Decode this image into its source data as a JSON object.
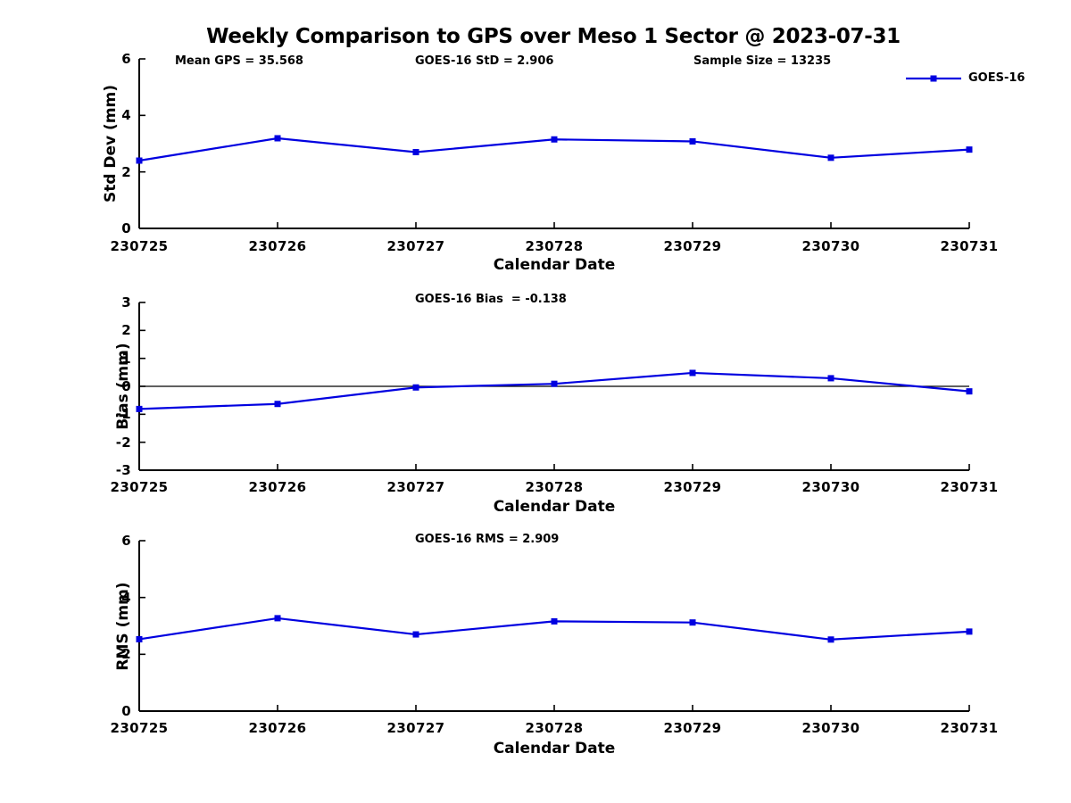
{
  "figure": {
    "title": "Weekly Comparison to GPS over Meso 1 Sector @ 2023-07-31"
  },
  "legend": {
    "label": "GOES-16",
    "position": "top-right"
  },
  "colors": {
    "series": "#0000e0",
    "axis": "#000000",
    "background": "#ffffff",
    "text": "#000000"
  },
  "chart_data": [
    {
      "id": "stddev",
      "type": "line",
      "xlabel": "Calendar Date",
      "ylabel": "Std Dev (mm)",
      "categories": [
        "230725",
        "230726",
        "230727",
        "230728",
        "230729",
        "230730",
        "230731"
      ],
      "series": [
        {
          "name": "GOES-16",
          "marker": "square",
          "values": [
            2.4,
            3.19,
            2.7,
            3.15,
            3.08,
            2.5,
            2.79
          ]
        }
      ],
      "ylim": [
        0,
        6
      ],
      "yticks": [
        6,
        4,
        2,
        0
      ],
      "grid": false,
      "zero_line": false,
      "annotations": [
        "Mean GPS = 35.568",
        "GOES-16 StD = 2.906",
        "Sample Size = 13235"
      ]
    },
    {
      "id": "bias",
      "type": "line",
      "xlabel": "Calendar Date",
      "ylabel": "Bias (mm)",
      "categories": [
        "230725",
        "230726",
        "230727",
        "230728",
        "230729",
        "230730",
        "230731"
      ],
      "series": [
        {
          "name": "GOES-16",
          "marker": "square",
          "values": [
            -0.81,
            -0.63,
            -0.04,
            0.09,
            0.48,
            0.29,
            -0.18
          ]
        }
      ],
      "ylim": [
        -3,
        3
      ],
      "yticks": [
        3,
        2,
        1,
        0,
        -1,
        -2,
        -3
      ],
      "grid": false,
      "zero_line": true,
      "annotations": [
        "GOES-16 Bias  = -0.138"
      ]
    },
    {
      "id": "rms",
      "type": "line",
      "xlabel": "Calendar Date",
      "ylabel": "RMS (mm)",
      "categories": [
        "230725",
        "230726",
        "230727",
        "230728",
        "230729",
        "230730",
        "230731"
      ],
      "series": [
        {
          "name": "GOES-16",
          "marker": "square",
          "values": [
            2.53,
            3.27,
            2.7,
            3.16,
            3.12,
            2.52,
            2.8
          ]
        }
      ],
      "ylim": [
        0,
        6
      ],
      "yticks": [
        6,
        4,
        2,
        0
      ],
      "grid": false,
      "zero_line": false,
      "annotations": [
        "GOES-16 RMS = 2.909"
      ]
    }
  ]
}
